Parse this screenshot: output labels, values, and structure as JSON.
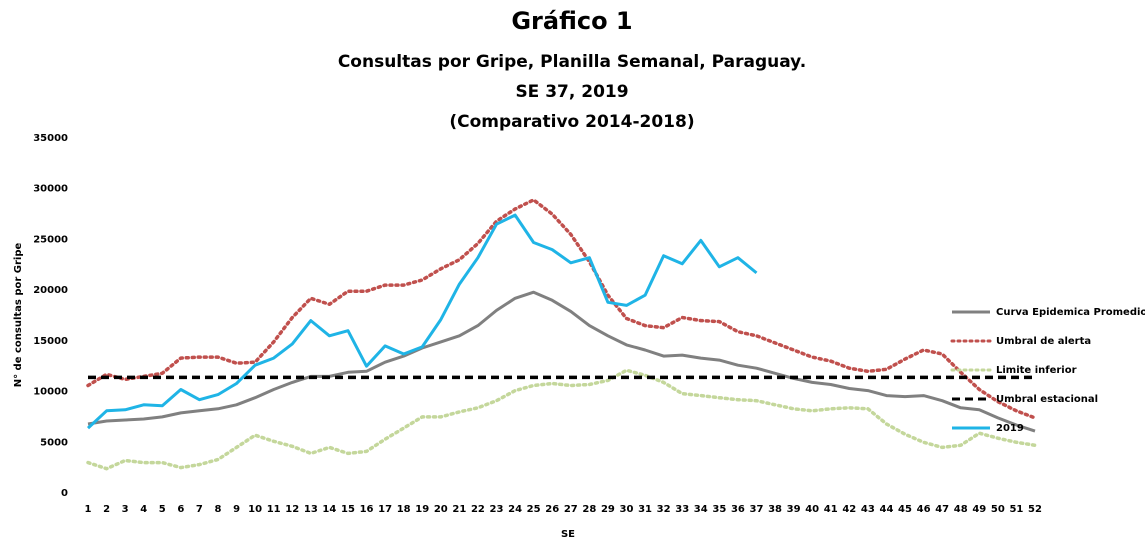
{
  "chart_data": {
    "type": "line",
    "title": "Gráfico 1",
    "subtitle": [
      "Consultas por Gripe, Planilla Semanal, Paraguay.",
      "SE 37, 2019",
      "(Comparativo 2014-2018)"
    ],
    "x_label": "SE",
    "y_label": "N° de consultas por Gripe",
    "categories": [
      "1",
      "2",
      "3",
      "4",
      "5",
      "6",
      "7",
      "8",
      "9",
      "10",
      "11",
      "12",
      "13",
      "14",
      "15",
      "16",
      "17",
      "18",
      "19",
      "20",
      "21",
      "22",
      "23",
      "24",
      "25",
      "26",
      "27",
      "28",
      "29",
      "30",
      "31",
      "32",
      "33",
      "34",
      "35",
      "36",
      "37",
      "38",
      "39",
      "40",
      "41",
      "42",
      "43",
      "44",
      "45",
      "46",
      "47",
      "48",
      "49",
      "50",
      "51",
      "52"
    ],
    "ylim": [
      0,
      35000
    ],
    "yticks": [
      0,
      5000,
      10000,
      15000,
      20000,
      25000,
      30000,
      35000
    ],
    "grid": false,
    "legend": "right",
    "series": [
      {
        "name": "Curva Epidemica Promedio",
        "color": "#808080",
        "dash": "solid",
        "values": [
          6800,
          7100,
          7200,
          7300,
          7500,
          7900,
          8100,
          8300,
          8700,
          9400,
          10200,
          10900,
          11500,
          11500,
          11900,
          12000,
          12900,
          13500,
          14300,
          14900,
          15500,
          16500,
          18000,
          19200,
          19800,
          19000,
          17900,
          16500,
          15500,
          14600,
          14100,
          13500,
          13600,
          13300,
          13100,
          12600,
          12300,
          11800,
          11300,
          10900,
          10700,
          10300,
          10100,
          9600,
          9500,
          9600,
          9100,
          8400,
          8200,
          7400,
          6700,
          6100
        ]
      },
      {
        "name": "Umbral de alerta",
        "color": "#c0504d",
        "dash": "dotted",
        "values": [
          10600,
          11700,
          11200,
          11500,
          11800,
          13300,
          13400,
          13400,
          12800,
          12900,
          14900,
          17300,
          19200,
          18600,
          19900,
          19900,
          20500,
          20500,
          21000,
          22100,
          23000,
          24600,
          26800,
          28000,
          28900,
          27500,
          25500,
          22800,
          19500,
          17200,
          16500,
          16300,
          17300,
          17000,
          16900,
          15900,
          15500,
          14800,
          14100,
          13400,
          13000,
          12300,
          12000,
          12200,
          13200,
          14100,
          13700,
          11900,
          10200,
          9000,
          8100,
          7400
        ]
      },
      {
        "name": "Limite inferior",
        "color": "#c4d79b",
        "dash": "dotted",
        "values": [
          3000,
          2400,
          3200,
          3000,
          3000,
          2500,
          2800,
          3300,
          4500,
          5700,
          5100,
          4600,
          3900,
          4500,
          3900,
          4100,
          5300,
          6400,
          7500,
          7500,
          8000,
          8400,
          9100,
          10100,
          10600,
          10800,
          10600,
          10700,
          11100,
          12100,
          11600,
          10900,
          9800,
          9600,
          9400,
          9200,
          9100,
          8700,
          8300,
          8100,
          8300,
          8400,
          8300,
          6800,
          5800,
          5000,
          4500,
          4700,
          5900,
          5400,
          5000,
          4700
        ]
      },
      {
        "name": "Umbral estacional",
        "color": "#000000",
        "dash": "dashed",
        "values": [
          11400,
          11400,
          11400,
          11400,
          11400,
          11400,
          11400,
          11400,
          11400,
          11400,
          11400,
          11400,
          11400,
          11400,
          11400,
          11400,
          11400,
          11400,
          11400,
          11400,
          11400,
          11400,
          11400,
          11400,
          11400,
          11400,
          11400,
          11400,
          11400,
          11400,
          11400,
          11400,
          11400,
          11400,
          11400,
          11400,
          11400,
          11400,
          11400,
          11400,
          11400,
          11400,
          11400,
          11400,
          11400,
          11400,
          11400,
          11400,
          11400,
          11400,
          11400,
          11400
        ]
      },
      {
        "name": "2019",
        "color": "#1fb4e6",
        "dash": "solid",
        "values": [
          6400,
          8100,
          8200,
          8700,
          8600,
          10200,
          9200,
          9700,
          10800,
          12600,
          13300,
          14700,
          17000,
          15500,
          16000,
          12500,
          14500,
          13700,
          14400,
          17100,
          20600,
          23200,
          26500,
          27400,
          24700,
          24000,
          22700,
          23200,
          18800,
          18500,
          19500,
          23400,
          22600,
          24900,
          22300,
          23200,
          21700,
          null,
          null,
          null,
          null,
          null,
          null,
          null,
          null,
          null,
          null,
          null,
          null,
          null,
          null,
          null
        ]
      }
    ]
  }
}
